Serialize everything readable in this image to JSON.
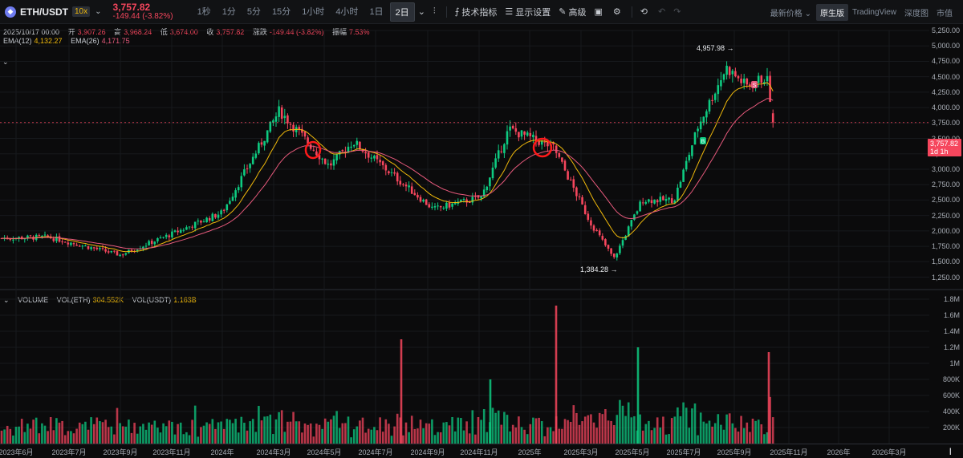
{
  "toolbar": {
    "symbol": "ETH/USDT",
    "leverage": "10x",
    "last_price": "3,757.82",
    "change": "-149.44 (-3.82%)",
    "intervals": [
      "1秒",
      "1分",
      "5分",
      "15分",
      "1小时",
      "4小时",
      "1日",
      "2日"
    ],
    "active_interval": "2日",
    "indicators_label": "技术指标",
    "display_settings_label": "显示设置",
    "advanced_label": "高级",
    "latest_price_label": "最新价格",
    "views": [
      "原生版",
      "TradingView",
      "深度图",
      "市值"
    ],
    "active_view": "原生版"
  },
  "ohlc": {
    "date": "2025/10/17 00:00",
    "open_label": "开",
    "open": "3,907.26",
    "high_label": "高",
    "high": "3,968.24",
    "low_label": "低",
    "low": "3,674.00",
    "close_label": "收",
    "close": "3,757.82",
    "chg_label": "涨跌",
    "chg": "-149.44 (-3.82%)",
    "amp_label": "振幅",
    "amp": "7.53%"
  },
  "ema": {
    "ema12_label": "EMA(12)",
    "ema12": "4,132.27",
    "ema26_label": "EMA(26)",
    "ema26": "4,171.75"
  },
  "volume_legend": {
    "title": "VOLUME",
    "eth_label": "VOL(ETH)",
    "eth": "304.552K",
    "usdt_label": "VOL(USDT)",
    "usdt": "1.163B"
  },
  "last_label": {
    "price": "3,757.82",
    "countdown": "1d 1h"
  },
  "high_marker": "4,957.98",
  "low_marker": "1,384.28",
  "trade_markers": {
    "buy": "B",
    "sell": "S"
  },
  "colors": {
    "up": "#0ecb81",
    "down": "#f6465d",
    "ema12": "#f0b90b",
    "ema26": "#e75a7c",
    "annotation": "#ff1a1a"
  },
  "chart_data": [
    {
      "type": "candlestick",
      "title": "ETH/USDT 2日",
      "x_ticks": [
        "2023年6月",
        "2023年7月",
        "2023年9月",
        "2023年11月",
        "2024年",
        "2024年3月",
        "2024年5月",
        "2024年7月",
        "2024年9月",
        "2024年11月",
        "2025年",
        "2025年3月",
        "2025年5月",
        "2025年7月",
        "2025年9月",
        "2025年11月",
        "2026年",
        "2026年3月"
      ],
      "y_ticks": [
        "5,250.00",
        "5,000.00",
        "4,750.00",
        "4,500.00",
        "4,250.00",
        "4,000.00",
        "3,750.00",
        "3,500.00",
        "3,250.00",
        "3,000.00",
        "2,750.00",
        "2,500.00",
        "2,250.00",
        "2,000.00",
        "1,750.00",
        "1,500.00",
        "1,250.00"
      ],
      "ylim": [
        1000,
        5250
      ],
      "approx_close_path": [
        {
          "x": "2023年6月",
          "y": 1880
        },
        {
          "x": "2023年7月",
          "y": 1900
        },
        {
          "x": "2023年9月",
          "y": 1620
        },
        {
          "x": "2023年11月",
          "y": 2000
        },
        {
          "x": "2024年",
          "y": 2300
        },
        {
          "x": "2024年3月",
          "y": 3950
        },
        {
          "x": "2024年5月",
          "y": 3050
        },
        {
          "x": "2024年7月",
          "y": 3450
        },
        {
          "x": "2024年9月",
          "y": 2350
        },
        {
          "x": "2024年11月",
          "y": 3600
        },
        {
          "x": "2025年",
          "y": 3500
        },
        {
          "x": "2025年3月",
          "y": 1850
        },
        {
          "x": "2025年5月",
          "y": 2500
        },
        {
          "x": "2025年7月",
          "y": 3700
        },
        {
          "x": "2025年9月",
          "y": 4450
        },
        {
          "x": "2025年10月",
          "y": 3757.82
        }
      ]
    },
    {
      "type": "bar",
      "title": "VOLUME",
      "y_ticks": [
        "1.8M",
        "1.6M",
        "1.4M",
        "1.2M",
        "1M",
        "800K",
        "600K",
        "400K",
        "200K"
      ],
      "ylim": [
        0,
        1850000
      ]
    }
  ]
}
